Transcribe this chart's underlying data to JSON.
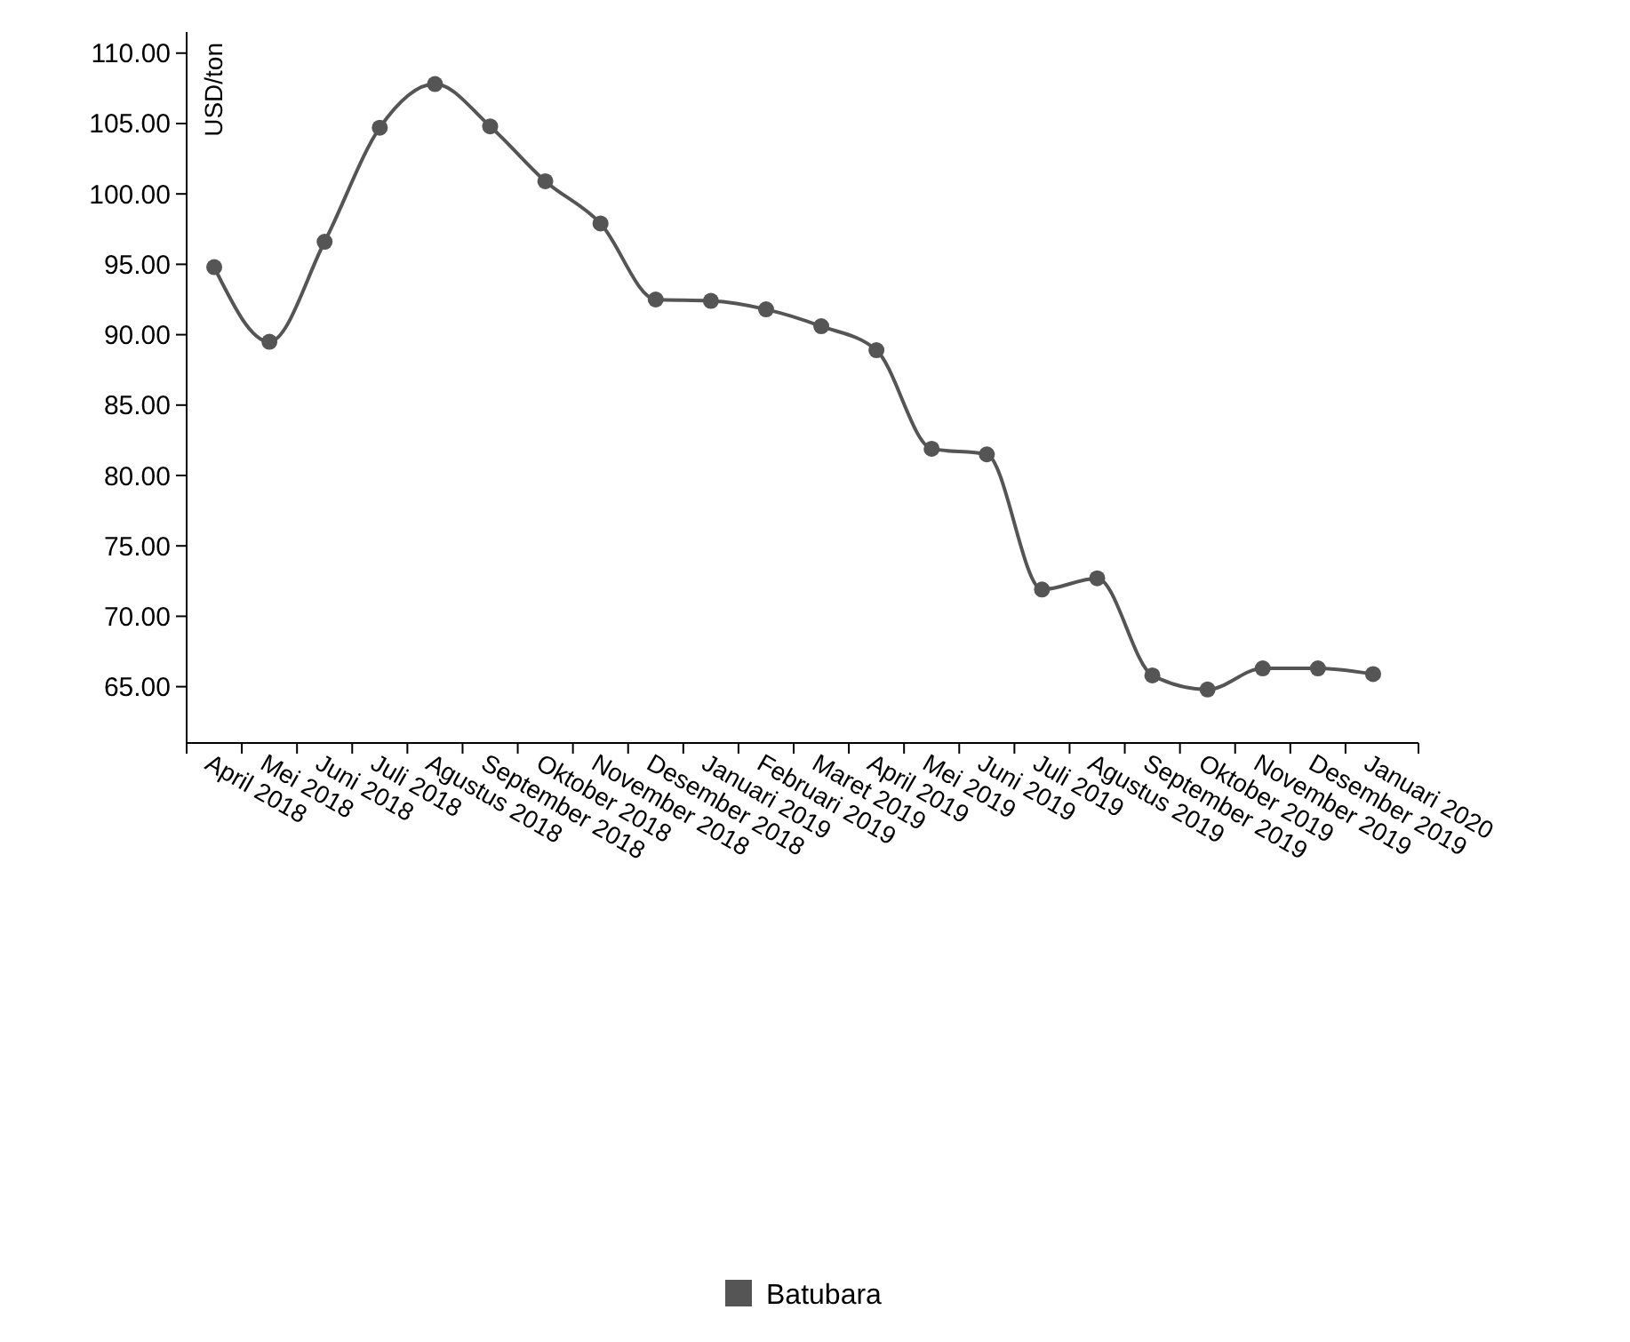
{
  "chart_data": {
    "type": "line",
    "ylabel": "USD/ton",
    "categories": [
      "April 2018",
      "Mei 2018",
      "Juni 2018",
      "Juli 2018",
      "Agustus 2018",
      "September 2018",
      "Oktober 2018",
      "November 2018",
      "Desember 2018",
      "Januari 2019",
      "Februari 2019",
      "Maret 2019",
      "April 2019",
      "Mei 2019",
      "Juni 2019",
      "Juli 2019",
      "Agustus 2019",
      "September 2019",
      "Oktober 2019",
      "November 2019",
      "Desember 2019",
      "Januari 2020"
    ],
    "series": [
      {
        "name": "Batubara",
        "color": "#555555",
        "values": [
          94.8,
          89.5,
          96.6,
          104.7,
          107.8,
          104.8,
          100.9,
          97.9,
          92.5,
          92.4,
          91.8,
          90.6,
          88.9,
          81.9,
          81.5,
          71.9,
          72.7,
          65.8,
          64.8,
          66.3,
          66.3,
          65.9
        ]
      }
    ],
    "ylim": [
      61,
      111.5
    ],
    "yticks": [
      {
        "value": 65,
        "label": "65.00"
      },
      {
        "value": 70,
        "label": "70.00"
      },
      {
        "value": 75,
        "label": "75.00"
      },
      {
        "value": 80,
        "label": "80.00"
      },
      {
        "value": 85,
        "label": "85.00"
      },
      {
        "value": 90,
        "label": "90.00"
      },
      {
        "value": 95,
        "label": "95.00"
      },
      {
        "value": 100,
        "label": "100.00"
      },
      {
        "value": 105,
        "label": "105.00"
      },
      {
        "value": 110,
        "label": "110.00"
      }
    ],
    "marker": "circle",
    "legend": "bottom",
    "grid": false
  }
}
